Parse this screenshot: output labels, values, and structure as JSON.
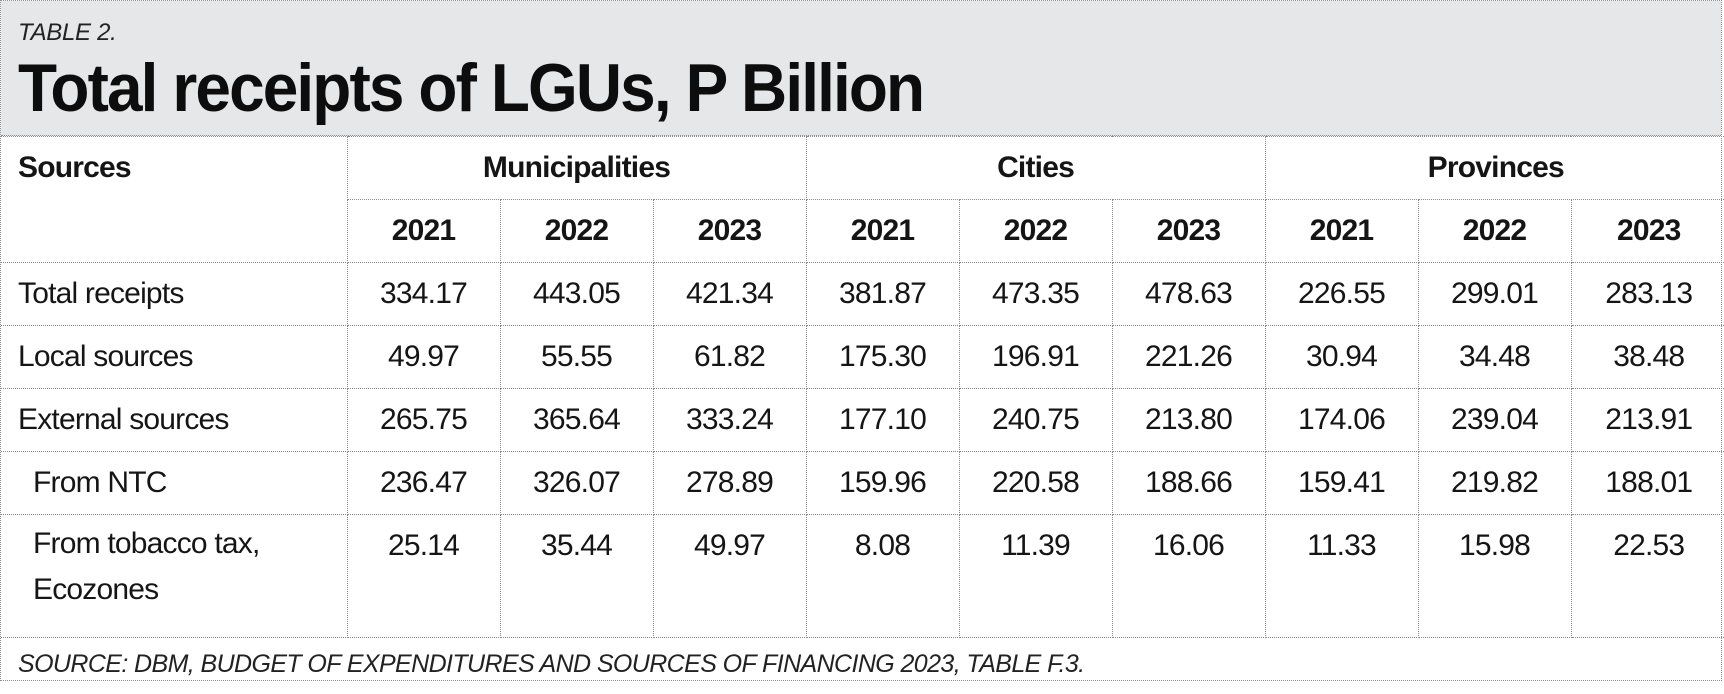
{
  "header": {
    "kicker": "TABLE 2.",
    "title": "Total receipts of LGUs, P Billion"
  },
  "table": {
    "sources_header": "Sources",
    "groups": [
      "Municipalities",
      "Cities",
      "Provinces"
    ],
    "years": [
      "2021",
      "2022",
      "2023",
      "2021",
      "2022",
      "2023",
      "2021",
      "2022",
      "2023"
    ],
    "rows": [
      {
        "label": "Total receipts",
        "values": [
          "334.17",
          "443.05",
          "421.34",
          "381.87",
          "473.35",
          "478.63",
          "226.55",
          "299.01",
          "283.13"
        ]
      },
      {
        "label": "Local sources",
        "values": [
          "49.97",
          "55.55",
          "61.82",
          "175.30",
          "196.91",
          "221.26",
          "30.94",
          "34.48",
          "38.48"
        ]
      },
      {
        "label": "External sources",
        "values": [
          "265.75",
          "365.64",
          "333.24",
          "177.10",
          "240.75",
          "213.80",
          "174.06",
          "239.04",
          "213.91"
        ]
      },
      {
        "label": "From NTC",
        "values": [
          "236.47",
          "326.07",
          "278.89",
          "159.96",
          "220.58",
          "188.66",
          "159.41",
          "219.82",
          "188.01"
        ]
      },
      {
        "label_line1": "From tobacco tax,",
        "label_line2": "Ecozones",
        "values": [
          "25.14",
          "35.44",
          "49.97",
          "8.08",
          "11.39",
          "16.06",
          "11.33",
          "15.98",
          "22.53"
        ]
      }
    ]
  },
  "footer": {
    "source": "SOURCE: DBM, BUDGET OF EXPENDITURES AND SOURCES OF FINANCING 2023, TABLE F.3."
  }
}
